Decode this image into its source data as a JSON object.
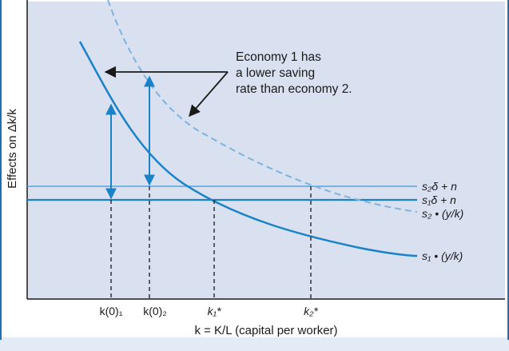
{
  "y_axis_label": "Effects on Δk/k",
  "x_axis_label": "k = K/L (capital per worker)",
  "annotation_lines": [
    "Economy 1 has",
    "a lower saving",
    "rate than economy 2."
  ],
  "curves": {
    "s2_avg_product": "s₂ • (y/k)",
    "s1_avg_product": "s₁ • (y/k)",
    "s2_depreciation": "s₂δ + n",
    "s1_depreciation": "s₁δ + n"
  },
  "ticks": {
    "k0_1": "k(0)₁",
    "k0_2": "k(0)₂",
    "k1_star": "k₁*",
    "k2_star": "k₂*"
  },
  "colors": {
    "plot_background": "#d9e0f0",
    "curve_blue": "#1a82c8",
    "curve_light_blue": "#5aa3d8",
    "dashed_blue": "#7fb3de",
    "axis": "#1a1a1a",
    "frame": "#1e6fb5",
    "page_bottom": "#e3ecf6"
  }
}
